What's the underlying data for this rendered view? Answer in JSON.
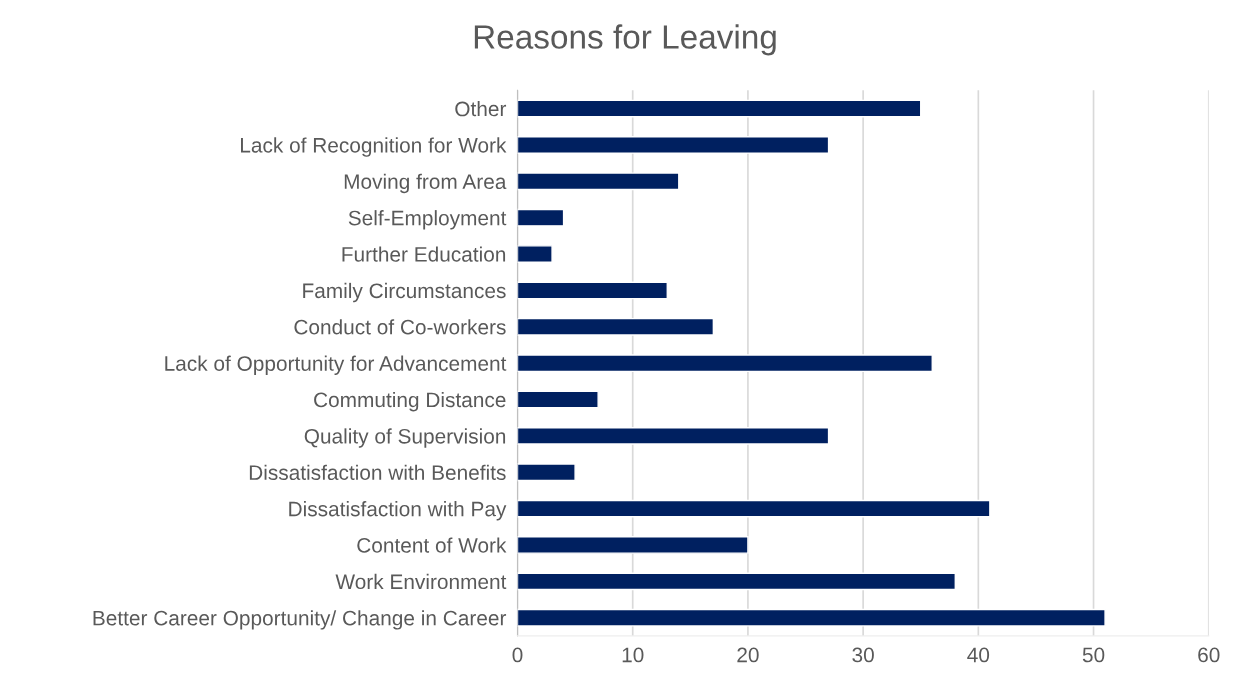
{
  "chart_data": {
    "type": "bar",
    "orientation": "horizontal",
    "title": "Reasons for Leaving",
    "categories": [
      "Other",
      "Lack of Recognition for Work",
      "Moving from Area",
      "Self-Employment",
      "Further Education",
      "Family Circumstances",
      "Conduct of Co-workers",
      "Lack of Opportunity for Advancement",
      "Commuting Distance",
      "Quality of Supervision",
      "Dissatisfaction with Benefits",
      "Dissatisfaction with Pay",
      "Content of Work",
      "Work Environment",
      "Better Career Opportunity/ Change in Career"
    ],
    "values": [
      35,
      27,
      14,
      4,
      3,
      13,
      17,
      36,
      7,
      27,
      5,
      41,
      20,
      38,
      51
    ],
    "color": "#002060",
    "xlim": [
      0,
      60
    ],
    "xticks": [
      0,
      10,
      20,
      30,
      40,
      50,
      60
    ],
    "grid": "x",
    "legend": false
  }
}
